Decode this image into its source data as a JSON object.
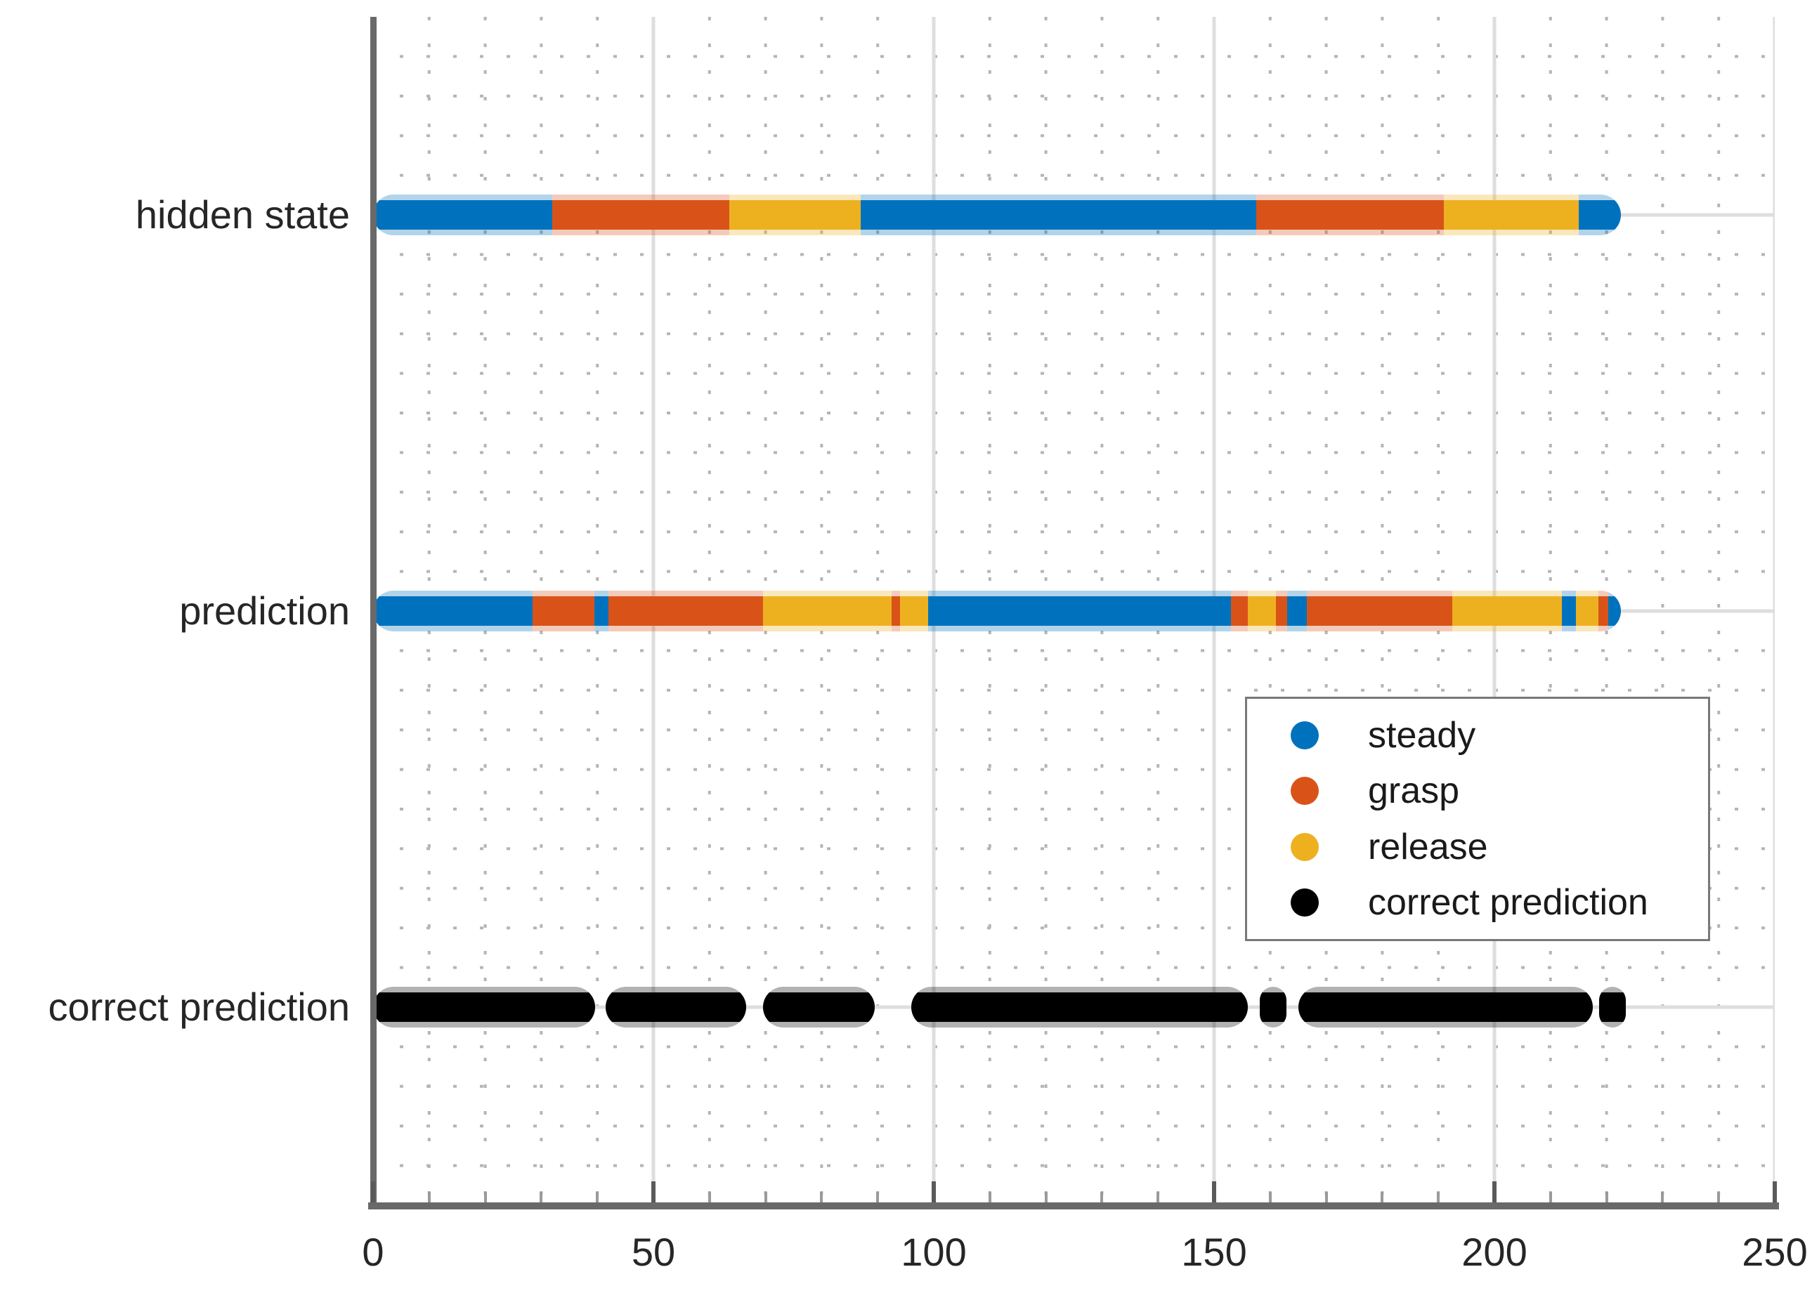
{
  "chart_data": {
    "type": "scatter",
    "title": "",
    "xlabel": "",
    "ylabel": "",
    "xlim": [
      0,
      250
    ],
    "ylim": [
      0.5,
      3.5
    ],
    "x_major_ticks": [
      0,
      50,
      100,
      150,
      200,
      250
    ],
    "x_tick_labels": [
      "0",
      "50",
      "100",
      "150",
      "200",
      "250"
    ],
    "x_minor_step": 10,
    "y_minor_step": 0.1,
    "grid": "on",
    "colors": {
      "steady": "#0072BD",
      "grasp": "#D95319",
      "release": "#EDB120",
      "correct": "#000000"
    },
    "rows": [
      {
        "label": "hidden state",
        "y": 3,
        "runs": [
          {
            "segments": [
              {
                "c": "steady",
                "s": 0,
                "e": 32
              },
              {
                "c": "grasp",
                "s": 32,
                "e": 63.5
              },
              {
                "c": "release",
                "s": 63.5,
                "e": 87
              },
              {
                "c": "steady",
                "s": 87,
                "e": 157.5
              },
              {
                "c": "grasp",
                "s": 157.5,
                "e": 191
              },
              {
                "c": "release",
                "s": 191,
                "e": 215
              },
              {
                "c": "steady",
                "s": 215,
                "e": 222.5
              }
            ]
          }
        ]
      },
      {
        "label": "prediction",
        "y": 2,
        "runs": [
          {
            "segments": [
              {
                "c": "steady",
                "s": 0,
                "e": 28.5
              },
              {
                "c": "grasp",
                "s": 28.5,
                "e": 39.5
              },
              {
                "c": "steady",
                "s": 39.5,
                "e": 42
              },
              {
                "c": "grasp",
                "s": 42,
                "e": 69.5
              },
              {
                "c": "release",
                "s": 69.5,
                "e": 92.5
              },
              {
                "c": "grasp",
                "s": 92.5,
                "e": 94
              },
              {
                "c": "release",
                "s": 94,
                "e": 99
              },
              {
                "c": "steady",
                "s": 99,
                "e": 153
              },
              {
                "c": "grasp",
                "s": 153,
                "e": 156
              },
              {
                "c": "release",
                "s": 156,
                "e": 161
              },
              {
                "c": "grasp",
                "s": 161,
                "e": 163
              },
              {
                "c": "steady",
                "s": 163,
                "e": 166.5
              },
              {
                "c": "grasp",
                "s": 166.5,
                "e": 192.5
              },
              {
                "c": "release",
                "s": 192.5,
                "e": 212
              },
              {
                "c": "steady",
                "s": 212,
                "e": 214.5
              },
              {
                "c": "release",
                "s": 214.5,
                "e": 218.5
              },
              {
                "c": "grasp",
                "s": 218.5,
                "e": 220.3
              },
              {
                "c": "steady",
                "s": 220.3,
                "e": 222.5
              }
            ]
          }
        ]
      },
      {
        "label": "correct prediction",
        "y": 1,
        "runs": [
          {
            "segments": [
              {
                "c": "correct",
                "s": 0,
                "e": 39.6
              }
            ]
          },
          {
            "segments": [
              {
                "c": "correct",
                "s": 41.5,
                "e": 66.5
              }
            ]
          },
          {
            "segments": [
              {
                "c": "correct",
                "s": 69.5,
                "e": 89.5
              }
            ]
          },
          {
            "segments": [
              {
                "c": "correct",
                "s": 96,
                "e": 156
              }
            ]
          },
          {
            "segments": [
              {
                "c": "correct",
                "s": 159,
                "e": 162
              }
            ]
          },
          {
            "segments": [
              {
                "c": "correct",
                "s": 165,
                "e": 217.5
              }
            ]
          },
          {
            "segments": [
              {
                "c": "correct",
                "s": 219.5,
                "e": 222.5
              }
            ]
          }
        ]
      }
    ],
    "legend": {
      "position": "inside-right",
      "entries": [
        {
          "key": "steady",
          "label": "steady"
        },
        {
          "key": "grasp",
          "label": "grasp"
        },
        {
          "key": "release",
          "label": "release"
        },
        {
          "key": "correct",
          "label": "correct prediction"
        }
      ]
    }
  }
}
